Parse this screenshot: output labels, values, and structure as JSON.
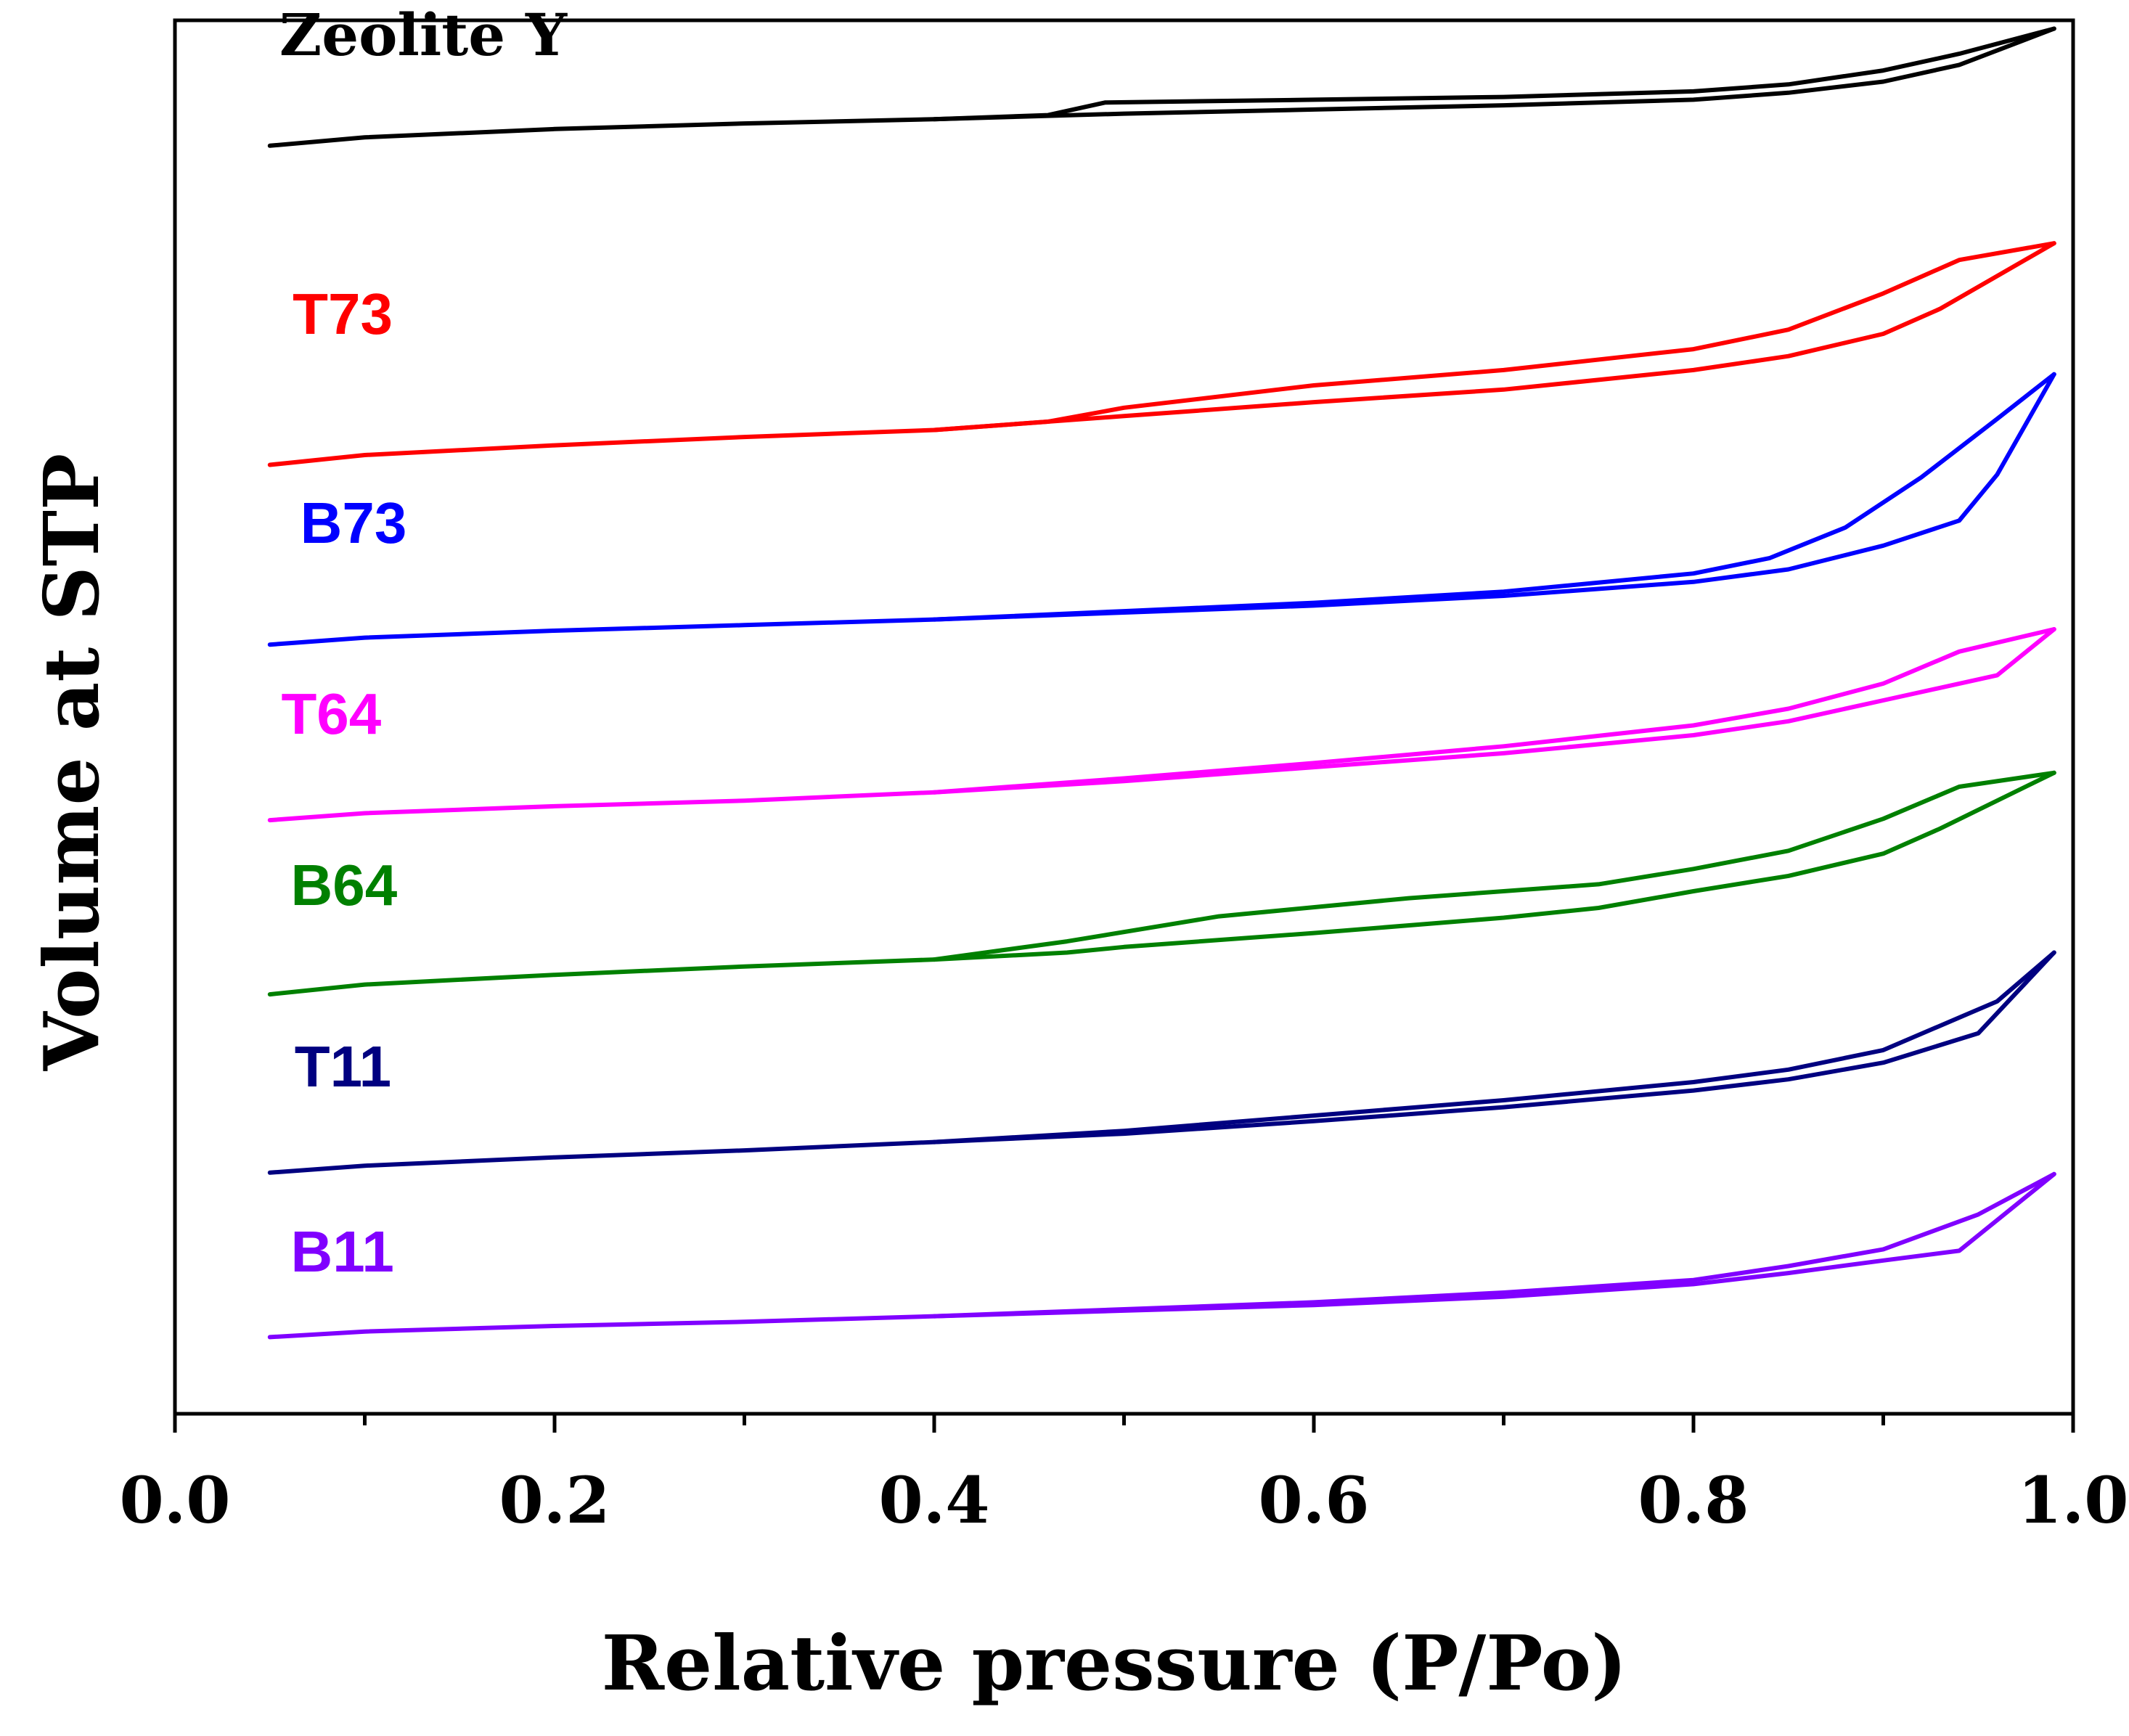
{
  "chart_data": {
    "type": "line",
    "title": "",
    "xlabel": "Relative pressure (P/Po)",
    "ylabel": "Volume at STP",
    "xlim": [
      0.0,
      1.0
    ],
    "ylim": [
      0,
      100
    ],
    "x_ticks": [
      "0.0",
      "0.2",
      "0.4",
      "0.6",
      "0.8",
      "1.0"
    ],
    "y_ticks_shown": false,
    "legend": "inline labels beside curves",
    "series": [
      {
        "name": "Zeolite Y",
        "color": "#000000",
        "label": "Zeolite Y",
        "adsorption": [
          [
            0.05,
            91.0
          ],
          [
            0.1,
            91.6
          ],
          [
            0.2,
            92.2
          ],
          [
            0.3,
            92.6
          ],
          [
            0.4,
            92.9
          ],
          [
            0.5,
            93.3
          ],
          [
            0.6,
            93.6
          ],
          [
            0.7,
            93.9
          ],
          [
            0.8,
            94.3
          ],
          [
            0.85,
            94.8
          ],
          [
            0.9,
            95.6
          ],
          [
            0.94,
            96.8
          ],
          [
            0.99,
            99.4
          ]
        ],
        "desorption": [
          [
            0.99,
            99.4
          ],
          [
            0.94,
            97.6
          ],
          [
            0.9,
            96.4
          ],
          [
            0.85,
            95.4
          ],
          [
            0.8,
            94.9
          ],
          [
            0.7,
            94.5
          ],
          [
            0.6,
            94.3
          ],
          [
            0.49,
            94.1
          ],
          [
            0.46,
            93.2
          ],
          [
            0.4,
            92.9
          ]
        ]
      },
      {
        "name": "T73",
        "color": "#ff0000",
        "label": "T73",
        "adsorption": [
          [
            0.05,
            68.1
          ],
          [
            0.1,
            68.8
          ],
          [
            0.2,
            69.5
          ],
          [
            0.3,
            70.1
          ],
          [
            0.4,
            70.6
          ],
          [
            0.5,
            71.6
          ],
          [
            0.6,
            72.6
          ],
          [
            0.7,
            73.5
          ],
          [
            0.8,
            74.9
          ],
          [
            0.85,
            75.9
          ],
          [
            0.9,
            77.5
          ],
          [
            0.93,
            79.3
          ],
          [
            0.99,
            84.0
          ]
        ],
        "desorption": [
          [
            0.99,
            84.0
          ],
          [
            0.94,
            82.8
          ],
          [
            0.9,
            80.4
          ],
          [
            0.85,
            77.8
          ],
          [
            0.8,
            76.4
          ],
          [
            0.7,
            74.9
          ],
          [
            0.6,
            73.8
          ],
          [
            0.5,
            72.2
          ],
          [
            0.46,
            71.2
          ],
          [
            0.4,
            70.6
          ]
        ]
      },
      {
        "name": "B73",
        "color": "#0000ff",
        "label": "B73",
        "adsorption": [
          [
            0.05,
            55.2
          ],
          [
            0.1,
            55.7
          ],
          [
            0.2,
            56.2
          ],
          [
            0.3,
            56.6
          ],
          [
            0.4,
            57.0
          ],
          [
            0.5,
            57.5
          ],
          [
            0.6,
            58.0
          ],
          [
            0.7,
            58.7
          ],
          [
            0.8,
            59.7
          ],
          [
            0.85,
            60.6
          ],
          [
            0.9,
            62.3
          ],
          [
            0.94,
            64.1
          ],
          [
            0.96,
            67.4
          ],
          [
            0.99,
            74.6
          ]
        ],
        "desorption": [
          [
            0.99,
            74.6
          ],
          [
            0.96,
            71.4
          ],
          [
            0.92,
            67.2
          ],
          [
            0.88,
            63.6
          ],
          [
            0.84,
            61.4
          ],
          [
            0.8,
            60.3
          ],
          [
            0.7,
            59.0
          ],
          [
            0.6,
            58.2
          ],
          [
            0.5,
            57.6
          ],
          [
            0.4,
            57.0
          ]
        ]
      },
      {
        "name": "T64",
        "color": "#ff00ff",
        "label": "T64",
        "adsorption": [
          [
            0.05,
            42.6
          ],
          [
            0.1,
            43.1
          ],
          [
            0.2,
            43.6
          ],
          [
            0.3,
            44.0
          ],
          [
            0.4,
            44.6
          ],
          [
            0.5,
            45.4
          ],
          [
            0.6,
            46.4
          ],
          [
            0.7,
            47.4
          ],
          [
            0.8,
            48.7
          ],
          [
            0.85,
            49.7
          ],
          [
            0.9,
            51.2
          ],
          [
            0.96,
            53.0
          ],
          [
            0.99,
            56.3
          ]
        ],
        "desorption": [
          [
            0.99,
            56.3
          ],
          [
            0.94,
            54.7
          ],
          [
            0.9,
            52.4
          ],
          [
            0.85,
            50.6
          ],
          [
            0.8,
            49.4
          ],
          [
            0.7,
            47.9
          ],
          [
            0.6,
            46.7
          ],
          [
            0.5,
            45.6
          ],
          [
            0.4,
            44.6
          ]
        ]
      },
      {
        "name": "B64",
        "color": "#008000",
        "label": "B64",
        "adsorption": [
          [
            0.05,
            30.1
          ],
          [
            0.1,
            30.8
          ],
          [
            0.2,
            31.5
          ],
          [
            0.3,
            32.1
          ],
          [
            0.4,
            32.6
          ],
          [
            0.47,
            33.1
          ],
          [
            0.5,
            33.5
          ],
          [
            0.6,
            34.5
          ],
          [
            0.7,
            35.6
          ],
          [
            0.75,
            36.3
          ],
          [
            0.8,
            37.5
          ],
          [
            0.85,
            38.6
          ],
          [
            0.9,
            40.2
          ],
          [
            0.93,
            42.0
          ],
          [
            0.99,
            46.0
          ]
        ],
        "desorption": [
          [
            0.99,
            46.0
          ],
          [
            0.94,
            45.0
          ],
          [
            0.9,
            42.7
          ],
          [
            0.85,
            40.4
          ],
          [
            0.8,
            39.1
          ],
          [
            0.75,
            38.0
          ],
          [
            0.65,
            37.0
          ],
          [
            0.55,
            35.7
          ],
          [
            0.47,
            33.9
          ],
          [
            0.4,
            32.6
          ]
        ]
      },
      {
        "name": "T11",
        "color": "#000080",
        "label": "T11",
        "adsorption": [
          [
            0.05,
            17.3
          ],
          [
            0.1,
            17.8
          ],
          [
            0.2,
            18.4
          ],
          [
            0.3,
            18.9
          ],
          [
            0.4,
            19.5
          ],
          [
            0.5,
            20.1
          ],
          [
            0.6,
            21.0
          ],
          [
            0.7,
            22.0
          ],
          [
            0.8,
            23.2
          ],
          [
            0.85,
            24.0
          ],
          [
            0.9,
            25.2
          ],
          [
            0.95,
            27.3
          ],
          [
            0.99,
            33.1
          ]
        ],
        "desorption": [
          [
            0.99,
            33.1
          ],
          [
            0.96,
            29.6
          ],
          [
            0.9,
            26.1
          ],
          [
            0.85,
            24.7
          ],
          [
            0.8,
            23.8
          ],
          [
            0.7,
            22.5
          ],
          [
            0.6,
            21.4
          ],
          [
            0.5,
            20.3
          ],
          [
            0.4,
            19.5
          ]
        ]
      },
      {
        "name": "B11",
        "color": "#8000ff",
        "label": "B11",
        "adsorption": [
          [
            0.05,
            5.5
          ],
          [
            0.1,
            5.9
          ],
          [
            0.2,
            6.3
          ],
          [
            0.3,
            6.6
          ],
          [
            0.4,
            7.0
          ],
          [
            0.5,
            7.4
          ],
          [
            0.6,
            7.8
          ],
          [
            0.7,
            8.4
          ],
          [
            0.8,
            9.3
          ],
          [
            0.85,
            10.1
          ],
          [
            0.9,
            11.0
          ],
          [
            0.94,
            11.7
          ],
          [
            0.99,
            17.2
          ]
        ],
        "desorption": [
          [
            0.99,
            17.2
          ],
          [
            0.95,
            14.3
          ],
          [
            0.9,
            11.8
          ],
          [
            0.85,
            10.6
          ],
          [
            0.8,
            9.6
          ],
          [
            0.7,
            8.7
          ],
          [
            0.6,
            8.0
          ],
          [
            0.5,
            7.5
          ],
          [
            0.4,
            7.0
          ]
        ]
      }
    ]
  }
}
